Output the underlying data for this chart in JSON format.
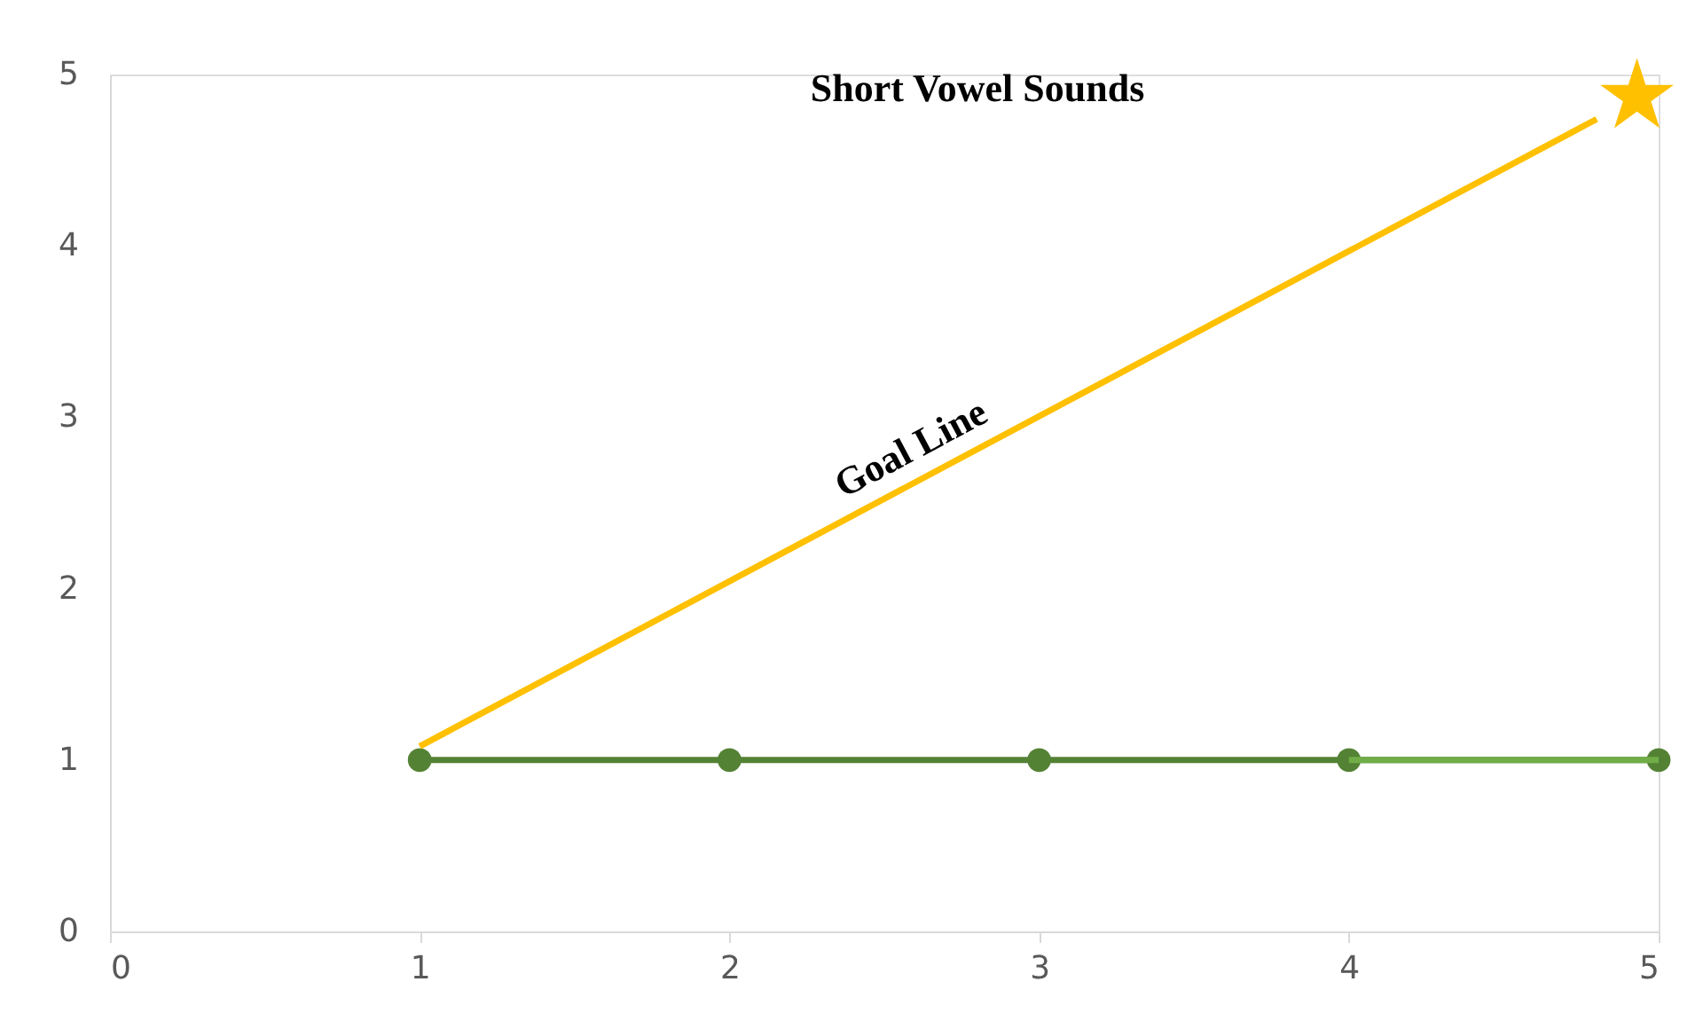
{
  "chart_data": {
    "type": "line",
    "title": "Short Vowel Sounds",
    "series": [
      {
        "color": "#548235",
        "x": [
          1,
          2,
          3,
          4,
          5
        ],
        "values": [
          1,
          1,
          1,
          1,
          1
        ],
        "marker": "circle"
      },
      {
        "color": "#70ad47",
        "x": [
          4,
          5
        ],
        "values": [
          1,
          1
        ],
        "marker": "none"
      },
      {
        "color": "#ffc000",
        "x": [
          1,
          4.8
        ],
        "values": [
          1.08,
          4.74
        ],
        "marker": "none"
      },
      {
        "type": "scatter",
        "color": "#ffc000",
        "x": [
          4.93
        ],
        "values": [
          4.87
        ],
        "marker": "star"
      }
    ],
    "annotations": [
      "Goal Line"
    ],
    "xlim": [
      0,
      5
    ],
    "xticks": [
      0,
      1,
      2,
      3,
      4,
      5
    ],
    "ylim": [
      0,
      5
    ],
    "yticks": [
      0,
      1,
      2,
      3,
      4,
      5
    ],
    "grid": false,
    "legend": false
  }
}
